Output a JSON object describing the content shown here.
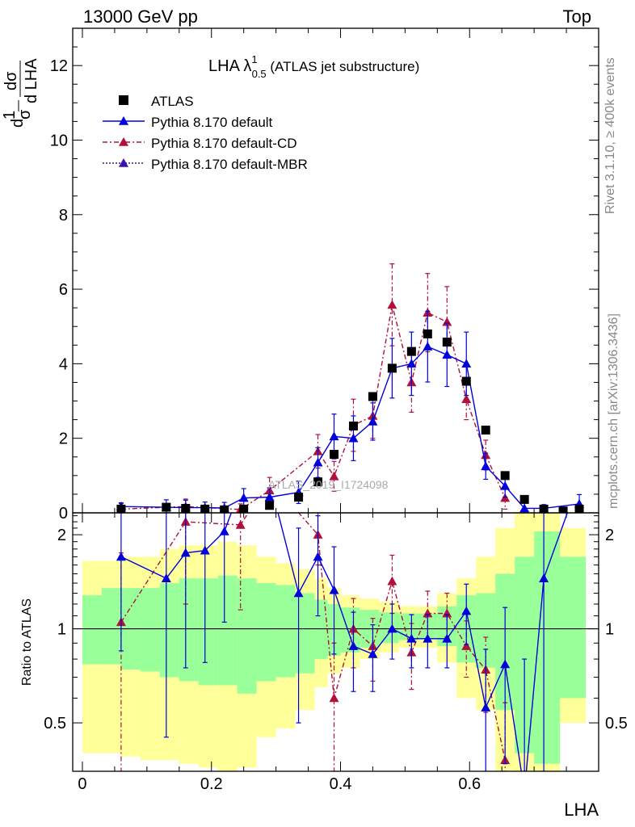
{
  "header": {
    "left": "13000 GeV pp",
    "right": "Top"
  },
  "side_labels": {
    "rivet": "Rivet 3.1.10, ≥ 400k events",
    "mcplots": "mcplots.cern.ch [arXiv:1306.3436]"
  },
  "plot_title": {
    "main": "LHA λ",
    "sup": "1",
    "sub": "0.5",
    "suffix": " (ATLAS jet substructure)"
  },
  "watermark": "ATLAS_2019_I1724098",
  "axis": {
    "xlabel": "LHA",
    "ylabel_top": "1/σ dσ/d LHA",
    "ylabel_ratio": "Ratio to ATLAS"
  },
  "legend": [
    {
      "label": "ATLAS",
      "marker": "square",
      "color": "#000000"
    },
    {
      "label": "Pythia 8.170 default",
      "marker": "triangle",
      "color": "#0000dd",
      "dash": "solid"
    },
    {
      "label": "Pythia 8.170 default-CD",
      "marker": "triangle",
      "color": "#b0103a",
      "dash": "dashdot"
    },
    {
      "label": "Pythia 8.170 default-MBR",
      "marker": "triangle",
      "color": "#3a10b0",
      "dash": "dotted"
    }
  ],
  "chart_data": {
    "type": "scatter",
    "x_ticks": [
      "0",
      "0.2",
      "0.4",
      "0.6"
    ],
    "y_ticks_main": [
      "0",
      "2",
      "4",
      "6",
      "8",
      "10",
      "12"
    ],
    "y_ticks_ratio": [
      "0.5",
      "1",
      "2"
    ],
    "xlim": [
      -0.015,
      0.8
    ],
    "ylim_main": [
      0,
      13.0
    ],
    "ylim_ratio": [
      0.35,
      2.35
    ],
    "ratio_log": true,
    "bin_edges": [
      0.0,
      0.03,
      0.06,
      0.09,
      0.12,
      0.15,
      0.18,
      0.21,
      0.24,
      0.27,
      0.3,
      0.33,
      0.36,
      0.38,
      0.4,
      0.43,
      0.46,
      0.49,
      0.52,
      0.55,
      0.58,
      0.61,
      0.64,
      0.67,
      0.7,
      0.74,
      0.78
    ],
    "band_green": [
      [
        0.77,
        1.28
      ],
      [
        0.77,
        1.35
      ],
      [
        0.74,
        1.35
      ],
      [
        0.73,
        1.35
      ],
      [
        0.7,
        1.4
      ],
      [
        0.68,
        1.45
      ],
      [
        0.66,
        1.45
      ],
      [
        0.66,
        1.48
      ],
      [
        0.62,
        1.45
      ],
      [
        0.68,
        1.4
      ],
      [
        0.7,
        1.38
      ],
      [
        0.72,
        1.3
      ],
      [
        0.8,
        1.24
      ],
      [
        0.82,
        1.2
      ],
      [
        0.84,
        1.17
      ],
      [
        0.87,
        1.15
      ],
      [
        0.9,
        1.13
      ],
      [
        0.92,
        1.12
      ],
      [
        0.93,
        1.12
      ],
      [
        0.88,
        1.18
      ],
      [
        0.78,
        1.28
      ],
      [
        0.75,
        1.3
      ],
      [
        0.55,
        1.5
      ],
      [
        0.4,
        1.7
      ],
      [
        0.37,
        2.05
      ],
      [
        0.6,
        1.7
      ]
    ],
    "band_yellow": [
      [
        0.4,
        1.65
      ],
      [
        0.4,
        1.65
      ],
      [
        0.39,
        1.7
      ],
      [
        0.38,
        1.7
      ],
      [
        0.38,
        1.8
      ],
      [
        0.37,
        1.85
      ],
      [
        0.36,
        1.85
      ],
      [
        0.35,
        1.9
      ],
      [
        0.36,
        1.85
      ],
      [
        0.45,
        1.7
      ],
      [
        0.48,
        1.62
      ],
      [
        0.55,
        1.55
      ],
      [
        0.65,
        1.45
      ],
      [
        0.72,
        1.35
      ],
      [
        0.75,
        1.28
      ],
      [
        0.8,
        1.25
      ],
      [
        0.84,
        1.22
      ],
      [
        0.87,
        1.18
      ],
      [
        0.87,
        1.18
      ],
      [
        0.78,
        1.3
      ],
      [
        0.6,
        1.45
      ],
      [
        0.55,
        1.7
      ],
      [
        0.35,
        2.1
      ],
      [
        0.3,
        2.6
      ],
      [
        0.3,
        2.5
      ],
      [
        0.5,
        2.1
      ]
    ],
    "series": [
      {
        "name": "ATLAS",
        "x": [
          0.06,
          0.13,
          0.16,
          0.19,
          0.22,
          0.25,
          0.29,
          0.335,
          0.365,
          0.39,
          0.42,
          0.45,
          0.48,
          0.51,
          0.535,
          0.565,
          0.595,
          0.625,
          0.655,
          0.685,
          0.715,
          0.745,
          0.77
        ],
        "y": [
          0.1,
          0.15,
          0.12,
          0.1,
          0.08,
          0.1,
          0.2,
          0.42,
          0.83,
          1.57,
          2.33,
          3.12,
          3.88,
          4.33,
          4.8,
          4.58,
          3.53,
          2.22,
          1.0,
          0.36,
          0.1,
          0.05,
          0.1
        ]
      },
      {
        "name": "Pythia 8.170 default",
        "x": [
          0.06,
          0.13,
          0.16,
          0.19,
          0.22,
          0.25,
          0.29,
          0.335,
          0.365,
          0.39,
          0.42,
          0.45,
          0.48,
          0.51,
          0.535,
          0.565,
          0.595,
          0.625,
          0.655,
          0.685,
          0.715,
          0.77
        ],
        "y": [
          0.17,
          0.15,
          0.14,
          0.14,
          0.13,
          0.4,
          0.42,
          0.55,
          1.35,
          2.05,
          2.0,
          2.45,
          3.88,
          4.0,
          4.46,
          4.24,
          4.0,
          1.25,
          0.72,
          0.12,
          0.12,
          0.24
        ],
        "err": [
          0.1,
          0.2,
          0.2,
          0.15,
          0.15,
          0.25,
          0.25,
          0.3,
          0.4,
          0.6,
          0.6,
          0.5,
          0.8,
          0.85,
          0.95,
          0.85,
          0.85,
          0.35,
          0.3,
          0.15,
          0.1,
          0.25
        ],
        "ratio": [
          1.7,
          1.45,
          1.75,
          1.78,
          2.05,
          null,
          null,
          1.3,
          1.7,
          1.33,
          0.88,
          0.83,
          1.0,
          0.93,
          0.93,
          0.93,
          1.14,
          0.56,
          0.77,
          0.3,
          1.45,
          null
        ],
        "ratio_err": [
          0.85,
          1.0,
          1.0,
          1.0,
          1.0,
          null,
          null,
          0.8,
          0.6,
          0.5,
          0.25,
          0.2,
          0.2,
          0.18,
          0.18,
          0.18,
          0.25,
          0.3,
          0.4,
          0.5,
          1.2,
          null
        ]
      },
      {
        "name": "Pythia 8.170 default-CD",
        "x": [
          0.06,
          0.16,
          0.245,
          0.29,
          0.365,
          0.39,
          0.42,
          0.45,
          0.48,
          0.51,
          0.535,
          0.565,
          0.595,
          0.625,
          0.655
        ],
        "y": [
          0.1,
          0.17,
          0.09,
          0.6,
          1.65,
          0.98,
          2.35,
          2.6,
          5.58,
          3.5,
          5.37,
          5.12,
          3.05,
          1.55,
          0.4
        ],
        "err": [
          0.15,
          0.2,
          0.15,
          0.35,
          0.45,
          0.4,
          0.7,
          0.6,
          1.1,
          0.8,
          1.05,
          0.95,
          0.55,
          0.4,
          0.3
        ],
        "ratio": [
          1.05,
          2.2,
          2.15,
          null,
          2.0,
          0.6,
          1.0,
          0.88,
          1.42,
          0.84,
          1.12,
          1.12,
          0.88,
          0.74,
          0.38
        ],
        "ratio_err": [
          0.7,
          1.0,
          1.0,
          null,
          0.4,
          0.3,
          0.25,
          0.2,
          0.3,
          0.2,
          0.2,
          0.18,
          0.18,
          0.2,
          0.2
        ]
      }
    ]
  }
}
